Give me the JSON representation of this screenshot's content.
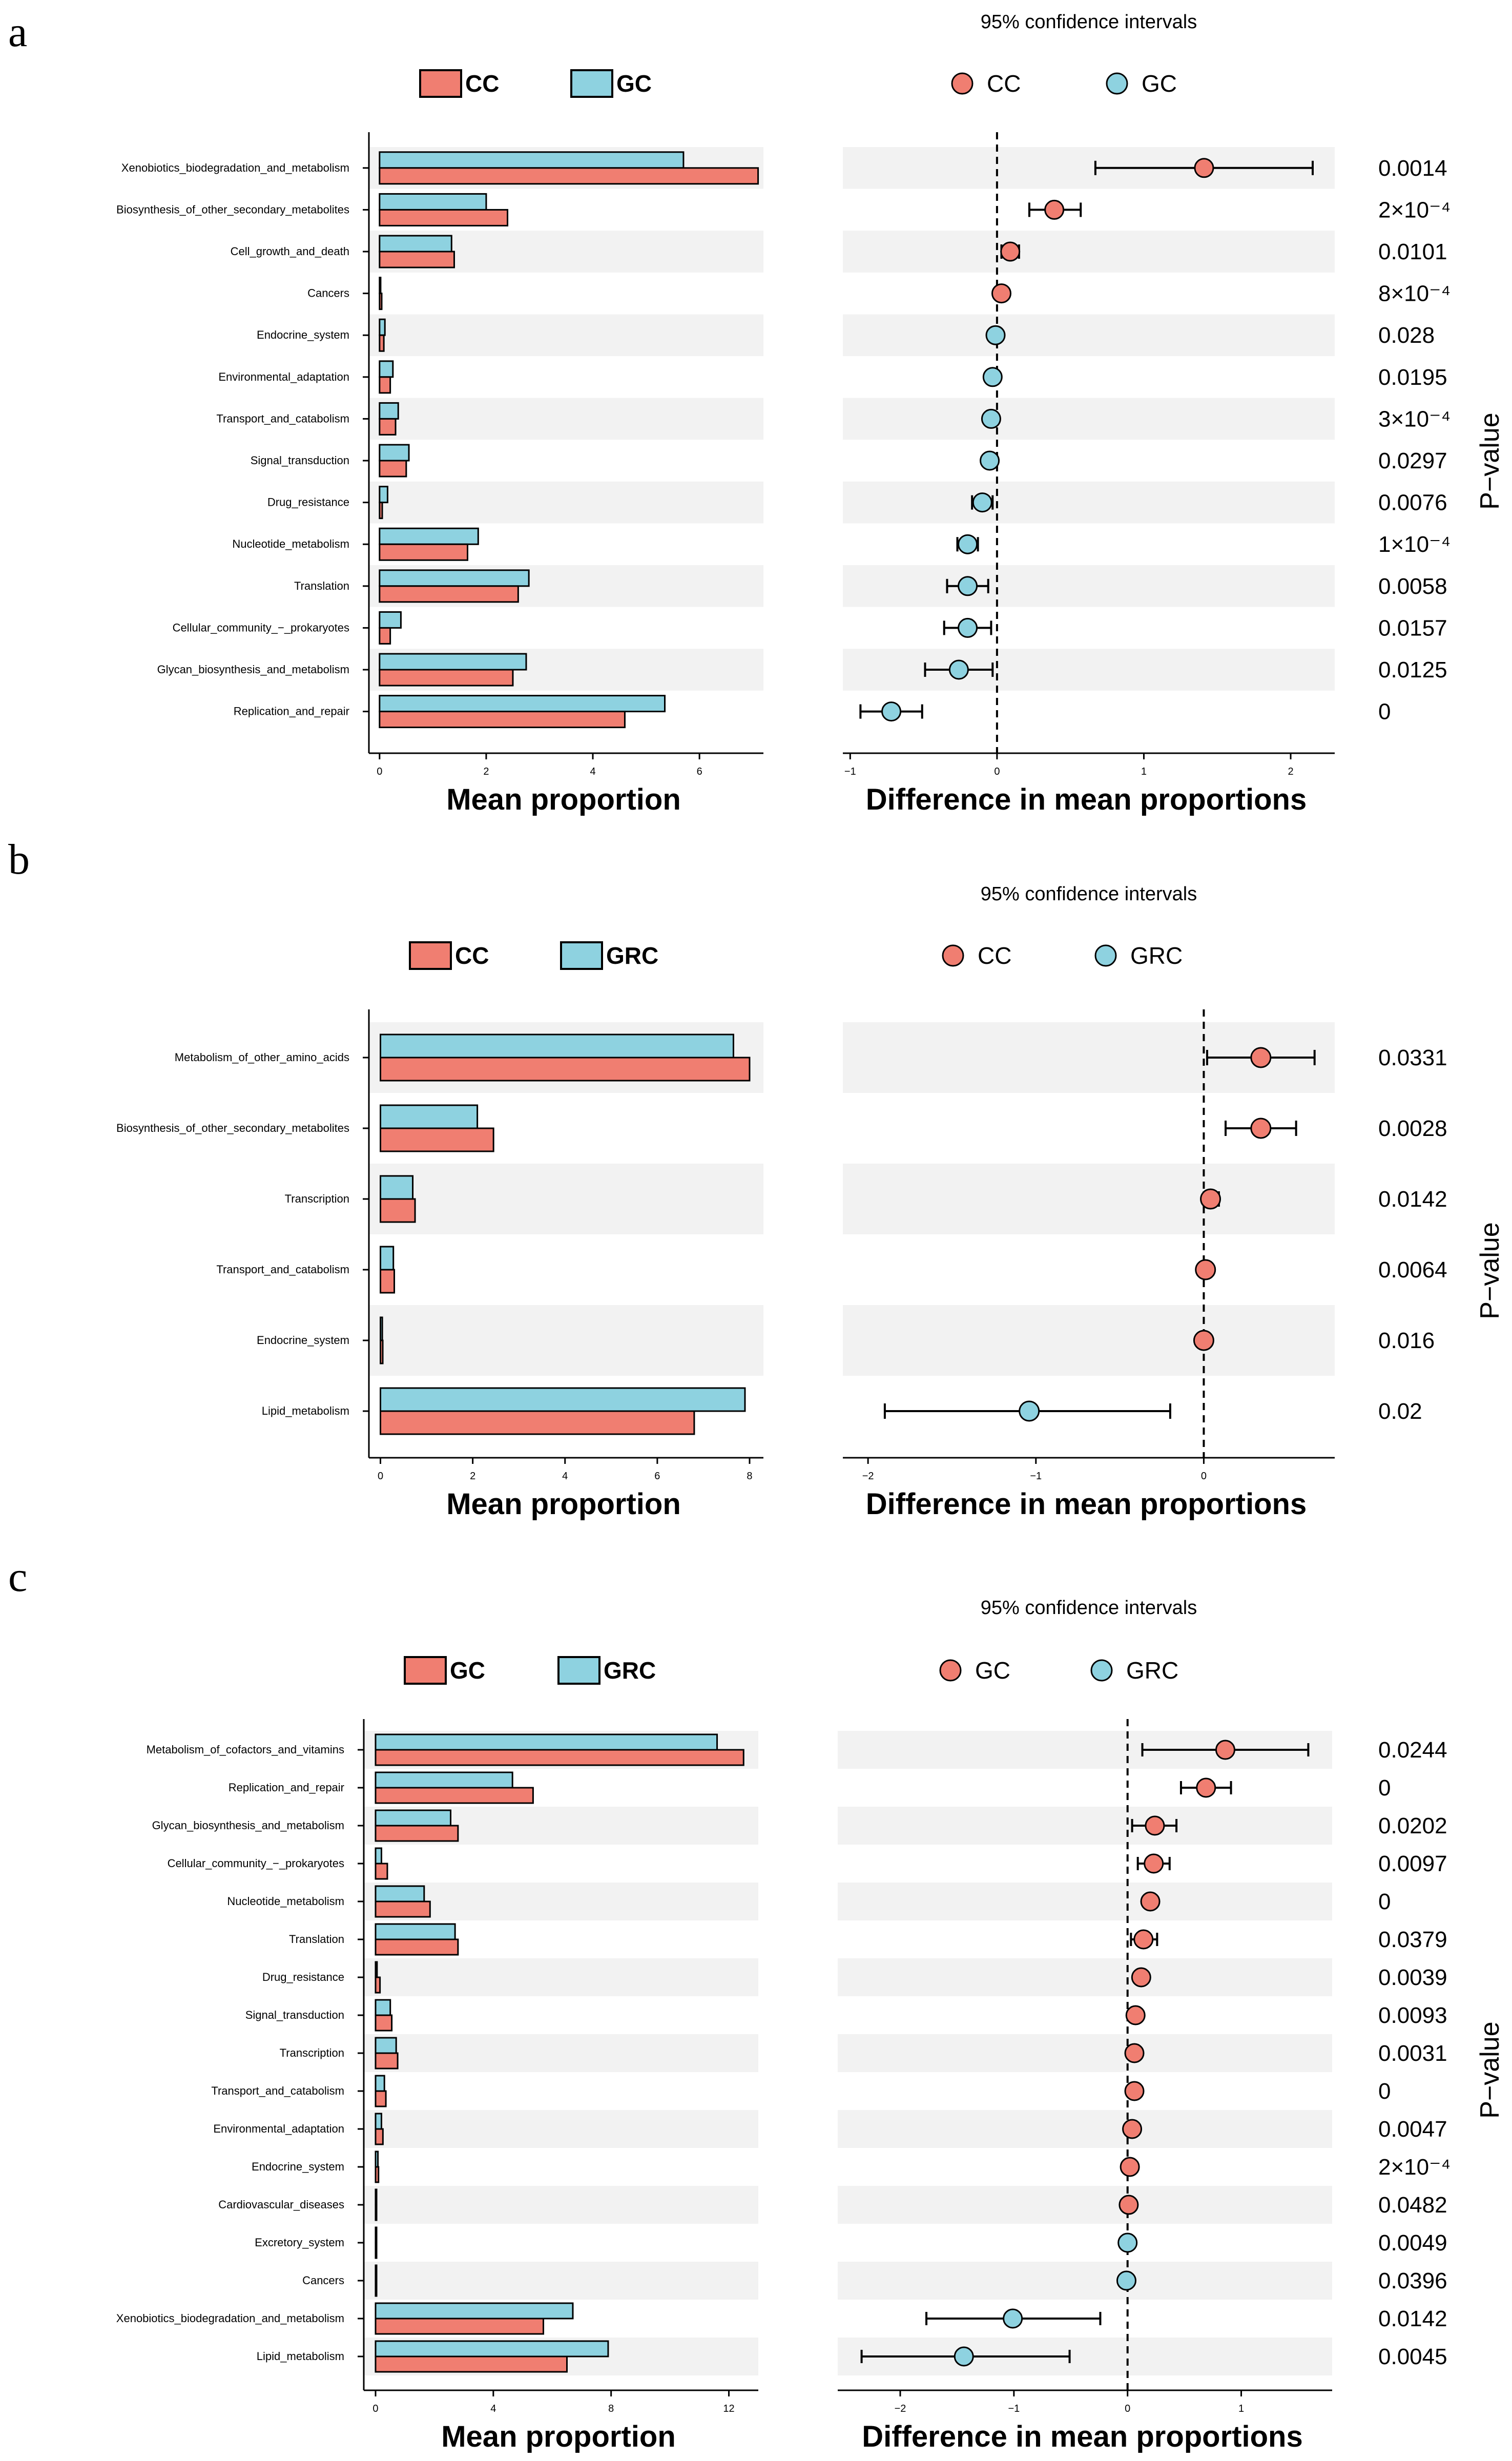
{
  "figure": {
    "colors": {
      "first_group": "#F07E71",
      "second_group": "#8ED2E0",
      "band": "#F2F2F2",
      "stroke": "#000000"
    },
    "panels": [
      {
        "letter": "a",
        "ci_title": "95% confidence intervals",
        "groups": [
          "CC",
          "GC"
        ],
        "bar_xlabel": "Mean proportion",
        "diff_xlabel": "Difference in mean proportions",
        "pvalue_label": "P−value"
      },
      {
        "letter": "b",
        "ci_title": "95% confidence intervals",
        "groups": [
          "CC",
          "GRC"
        ],
        "bar_xlabel": "Mean proportion",
        "diff_xlabel": "Difference in mean proportions",
        "pvalue_label": "P−value"
      },
      {
        "letter": "c",
        "ci_title": "95% confidence intervals",
        "groups": [
          "GC",
          "GRC"
        ],
        "bar_xlabel": "Mean proportion",
        "diff_xlabel": "Difference in mean proportions",
        "pvalue_label": "P−value"
      }
    ]
  },
  "chart_data": [
    {
      "type": "bar",
      "panel": "a",
      "title": "95% confidence intervals",
      "xlabel": "Mean proportion",
      "diff_xlabel": "Difference in mean proportions",
      "pvalue_label": "P−value",
      "bar_xlim": [
        -0.2,
        7.2
      ],
      "bar_xticks": [
        0,
        2,
        4,
        6
      ],
      "diff_xlim": [
        -1.05,
        2.3
      ],
      "diff_xticks": [
        -1,
        0,
        1,
        2
      ],
      "categories": [
        "Xenobiotics_biodegradation_and_metabolism",
        "Biosynthesis_of_other_secondary_metabolites",
        "Cell_growth_and_death",
        "Cancers",
        "Endocrine_system",
        "Environmental_adaptation",
        "Transport_and_catabolism",
        "Signal_transduction",
        "Drug_resistance",
        "Nucleotide_metabolism",
        "Translation",
        "Cellular_community_−_prokaryotes",
        "Glycan_biosynthesis_and_metabolism",
        "Replication_and_repair"
      ],
      "series": [
        {
          "name": "CC",
          "values": [
            7.1,
            2.4,
            1.4,
            0.04,
            0.08,
            0.2,
            0.3,
            0.5,
            0.05,
            1.65,
            2.6,
            0.2,
            2.5,
            4.6
          ]
        },
        {
          "name": "GC",
          "values": [
            5.7,
            2.0,
            1.35,
            0.02,
            0.1,
            0.25,
            0.35,
            0.55,
            0.15,
            1.85,
            2.8,
            0.4,
            2.75,
            5.35
          ]
        }
      ],
      "difference": {
        "estimate": [
          1.41,
          0.39,
          0.09,
          0.03,
          -0.01,
          -0.03,
          -0.04,
          -0.05,
          -0.1,
          -0.2,
          -0.2,
          -0.2,
          -0.26,
          -0.72
        ],
        "ci_low": [
          0.67,
          0.22,
          0.03,
          0.01,
          -0.04,
          -0.06,
          -0.08,
          -0.09,
          -0.17,
          -0.27,
          -0.34,
          -0.36,
          -0.49,
          -0.93
        ],
        "ci_high": [
          2.15,
          0.57,
          0.15,
          0.05,
          0.01,
          0.0,
          0.0,
          0.0,
          -0.03,
          -0.13,
          -0.06,
          -0.04,
          -0.03,
          -0.51
        ],
        "favors": [
          "CC",
          "CC",
          "CC",
          "CC",
          "GC",
          "GC",
          "GC",
          "GC",
          "GC",
          "GC",
          "GC",
          "GC",
          "GC",
          "GC"
        ]
      },
      "p_values": [
        "0.0014",
        "2×10⁻⁴",
        "0.0101",
        "8×10⁻⁴",
        "0.028",
        "0.0195",
        "3×10⁻⁴",
        "0.0297",
        "0.0076",
        "1×10⁻⁴",
        "0.0058",
        "0.0157",
        "0.0125",
        "0"
      ]
    },
    {
      "type": "bar",
      "panel": "b",
      "title": "95% confidence intervals",
      "xlabel": "Mean proportion",
      "diff_xlabel": "Difference in mean proportions",
      "pvalue_label": "P−value",
      "bar_xlim": [
        -0.25,
        8.3
      ],
      "bar_xticks": [
        0,
        2,
        4,
        6,
        8
      ],
      "diff_xlim": [
        -2.15,
        0.78
      ],
      "diff_xticks": [
        -2,
        -1,
        0
      ],
      "categories": [
        "Metabolism_of_other_amino_acids",
        "Biosynthesis_of_other_secondary_metabolites",
        "Transcription",
        "Transport_and_catabolism",
        "Endocrine_system",
        "Lipid_metabolism"
      ],
      "series": [
        {
          "name": "CC",
          "values": [
            8.0,
            2.45,
            0.75,
            0.3,
            0.05,
            6.8
          ]
        },
        {
          "name": "GRC",
          "values": [
            7.65,
            2.1,
            0.7,
            0.28,
            0.04,
            7.9
          ]
        }
      ],
      "difference": {
        "estimate": [
          0.34,
          0.34,
          0.04,
          0.01,
          0.0,
          -1.04
        ],
        "ci_low": [
          0.02,
          0.13,
          0.0,
          -0.01,
          -0.01,
          -1.9
        ],
        "ci_high": [
          0.66,
          0.55,
          0.09,
          0.04,
          0.01,
          -0.2
        ],
        "favors": [
          "CC",
          "CC",
          "CC",
          "CC",
          "CC",
          "GRC"
        ]
      },
      "p_values": [
        "0.0331",
        "0.0028",
        "0.0142",
        "0.0064",
        "0.016",
        "0.02"
      ]
    },
    {
      "type": "bar",
      "panel": "c",
      "title": "95% confidence intervals",
      "xlabel": "Mean proportion",
      "diff_xlabel": "Difference in mean proportions",
      "pvalue_label": "P−value",
      "bar_xlim": [
        -0.4,
        13.0
      ],
      "bar_xticks": [
        0,
        4,
        8,
        12
      ],
      "diff_xlim": [
        -2.55,
        1.8
      ],
      "diff_xticks": [
        -2,
        -1,
        0,
        1
      ],
      "categories": [
        "Metabolism_of_cofactors_and_vitamins",
        "Replication_and_repair",
        "Glycan_biosynthesis_and_metabolism",
        "Cellular_community_−_prokaryotes",
        "Nucleotide_metabolism",
        "Translation",
        "Drug_resistance",
        "Signal_transduction",
        "Transcription",
        "Transport_and_catabolism",
        "Environmental_adaptation",
        "Endocrine_system",
        "Cardiovascular_diseases",
        "Excretory_system",
        "Cancers",
        "Xenobiotics_biodegradation_and_metabolism",
        "Lipid_metabolism"
      ],
      "series": [
        {
          "name": "GC",
          "values": [
            12.5,
            5.35,
            2.8,
            0.4,
            1.85,
            2.8,
            0.15,
            0.55,
            0.75,
            0.35,
            0.25,
            0.1,
            0.03,
            0.02,
            0.02,
            5.7,
            6.5
          ]
        },
        {
          "name": "GRC",
          "values": [
            11.6,
            4.65,
            2.55,
            0.2,
            1.65,
            2.7,
            0.05,
            0.5,
            0.7,
            0.3,
            0.2,
            0.08,
            0.02,
            0.02,
            0.03,
            6.7,
            7.9
          ]
        }
      ],
      "difference": {
        "estimate": [
          0.86,
          0.69,
          0.24,
          0.23,
          0.2,
          0.14,
          0.12,
          0.07,
          0.06,
          0.06,
          0.04,
          0.02,
          0.01,
          0.0,
          -0.01,
          -1.01,
          -1.44
        ],
        "ci_low": [
          0.13,
          0.47,
          0.04,
          0.09,
          0.17,
          0.03,
          0.1,
          0.05,
          0.04,
          0.04,
          0.02,
          0.01,
          0.0,
          -0.01,
          -0.02,
          -1.77,
          -2.34
        ],
        "ci_high": [
          1.59,
          0.91,
          0.43,
          0.37,
          0.24,
          0.26,
          0.15,
          0.1,
          0.08,
          0.09,
          0.06,
          0.04,
          0.02,
          0.01,
          0.0,
          -0.24,
          -0.51
        ],
        "favors": [
          "GC",
          "GC",
          "GC",
          "GC",
          "GC",
          "GC",
          "GC",
          "GC",
          "GC",
          "GC",
          "GC",
          "GC",
          "GC",
          "GRC",
          "GRC",
          "GRC",
          "GRC"
        ]
      },
      "p_values": [
        "0.0244",
        "0",
        "0.0202",
        "0.0097",
        "0",
        "0.0379",
        "0.0039",
        "0.0093",
        "0.0031",
        "0",
        "0.0047",
        "2×10⁻⁴",
        "0.0482",
        "0.0049",
        "0.0396",
        "0.0142",
        "0.0045"
      ]
    }
  ]
}
